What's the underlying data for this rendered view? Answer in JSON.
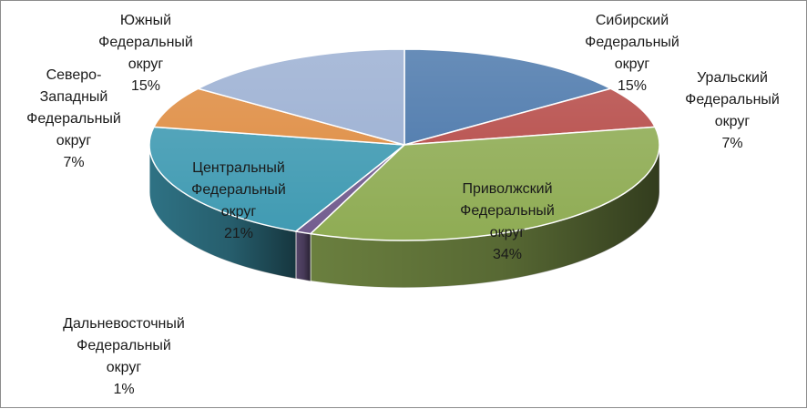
{
  "chart_data": {
    "type": "pie",
    "title": "",
    "legend": "none",
    "label_mode": "category-and-percent",
    "slices": [
      {
        "label": [
          "Сибирский",
          "Федеральный",
          "округ"
        ],
        "percent_text": "15%",
        "value": 15,
        "color": "#4674a9"
      },
      {
        "label": [
          "Уральский",
          "Федеральный",
          "округ"
        ],
        "percent_text": "7%",
        "value": 7,
        "color": "#b54845"
      },
      {
        "label": [
          "Приволжский",
          "Федеральный",
          "округ"
        ],
        "percent_text": "34%",
        "value": 34,
        "color": "#8fac54"
      },
      {
        "label": [
          "Дальневосточный",
          "Федеральный",
          "округ"
        ],
        "percent_text": "1%",
        "value": 1,
        "color": "#735d8f"
      },
      {
        "label": [
          "Центральный",
          "Федеральный",
          "округ"
        ],
        "percent_text": "21%",
        "value": 21,
        "color": "#3f9ab2"
      },
      {
        "label": [
          "Северо-",
          "Западный",
          "Федеральный",
          "округ"
        ],
        "percent_text": "7%",
        "value": 7,
        "color": "#de8a3e"
      },
      {
        "label": [
          "Южный",
          "Федеральный",
          "округ"
        ],
        "percent_text": "15%",
        "value": 15,
        "color": "#98add1"
      }
    ]
  }
}
